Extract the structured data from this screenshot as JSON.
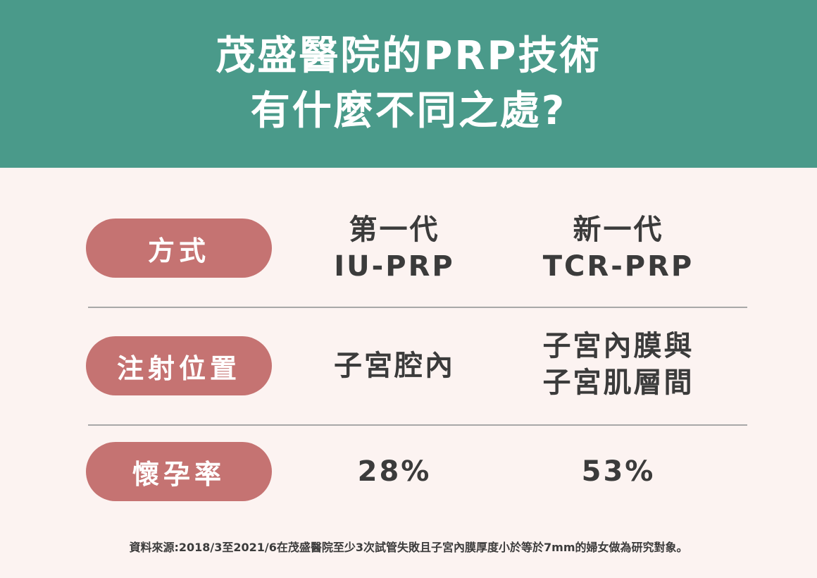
{
  "header": {
    "title_line1": "茂盛醫院的PRP技術",
    "title_line2": "有什麼不同之處?"
  },
  "rows": [
    {
      "label": "方式",
      "col1": [
        "第一代",
        "IU-PRP"
      ],
      "col2": [
        "新一代",
        "TCR-PRP"
      ]
    },
    {
      "label": "注射位置",
      "col1": [
        "子宮腔內"
      ],
      "col2": [
        "子宮內膜與",
        "子宮肌層間"
      ]
    },
    {
      "label": "懷孕率",
      "col1": [
        "28%"
      ],
      "col2": [
        "53%"
      ]
    }
  ],
  "footnote": "資料來源:2018/3至2021/6在茂盛醫院至少3次試管失敗且子宮內膜厚度小於等於7mm的婦女做為研究對象。",
  "colors": {
    "header": "#4a9a8a",
    "pill": "#c57372",
    "background": "#fcf3f1"
  }
}
